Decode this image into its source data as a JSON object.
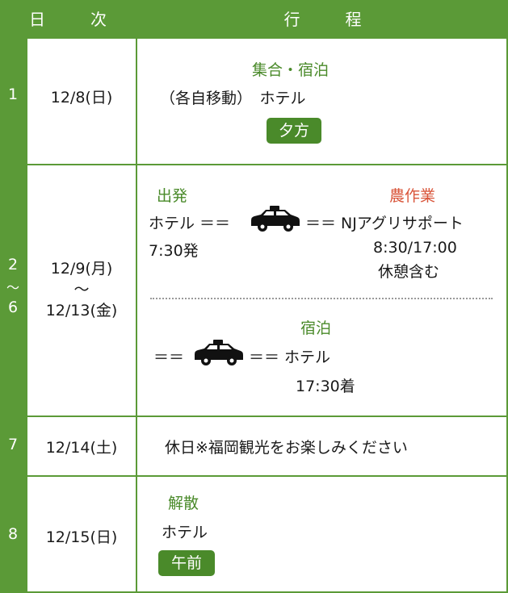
{
  "header": {
    "day_label": "日　次",
    "itinerary_label": "行　程"
  },
  "rows": [
    {
      "num": "1",
      "date": "12/8(日)",
      "title": "集合・宿泊",
      "line": "（各自移動）　ホテル",
      "badge": "夕方"
    },
    {
      "num_top": "2",
      "num_mid": "〜",
      "num_bot": "6",
      "date_start": "12/9(月)",
      "date_sep": "〜",
      "date_end": "12/13(金)",
      "depart_title": "出発",
      "farm_title": "農作業",
      "route_left": "ホテル ＝＝",
      "route_right": "＝＝ NJアグリサポート",
      "depart_time": "7:30発",
      "work_time": "8:30/17:00",
      "break_note": "休憩含む",
      "stay_title": "宿泊",
      "return_left": "＝＝",
      "return_right": "＝＝ ホテル",
      "arrive_time": "17:30着"
    },
    {
      "num": "7",
      "date": "12/14(土)",
      "note": "休日※福岡観光をお楽しみください"
    },
    {
      "num": "8",
      "date": "12/15(日)",
      "title": "解散",
      "line": "ホテル",
      "badge": "午前"
    }
  ],
  "colors": {
    "accent": "#5b9a37",
    "title_green": "#4a8a2a",
    "title_red": "#d9553a"
  },
  "icons": [
    "taxi-icon"
  ]
}
